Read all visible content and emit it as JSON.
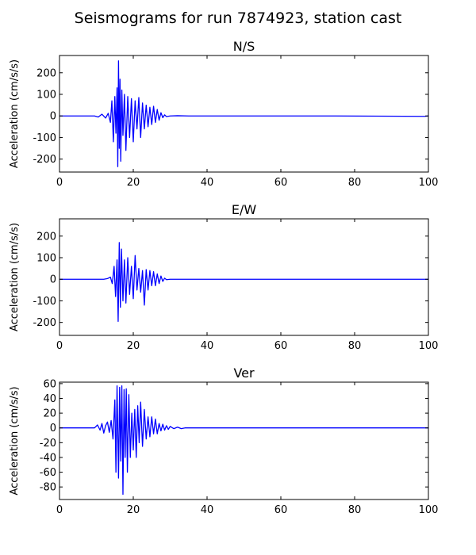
{
  "figure": {
    "title": "Seismograms for run 7874923, station cast"
  },
  "style": {
    "line_color": "#0000ff",
    "axes_color": "#000000",
    "background": "#ffffff"
  },
  "chart_data": [
    {
      "type": "line",
      "title": "N/S",
      "xlabel": "",
      "ylabel": "Acceleration (cm/s/s)",
      "xlim": [
        0,
        100
      ],
      "ylim": [
        -260,
        280
      ],
      "xticks": [
        0,
        20,
        40,
        60,
        80,
        100
      ],
      "yticks": [
        -200,
        -100,
        0,
        100,
        200
      ],
      "grid": false,
      "series": [
        {
          "x": [
            0,
            9.5,
            10.5,
            11.5,
            12.5,
            13.2,
            13.8,
            14.2,
            14.6,
            15.0,
            15.3,
            15.6,
            15.8,
            16.0,
            16.2,
            16.4,
            16.6,
            16.9,
            17.2,
            17.6,
            18.0,
            18.5,
            19.0,
            19.5,
            20.0,
            20.5,
            21.0,
            21.5,
            22.0,
            22.5,
            23.0,
            23.5,
            24.0,
            24.5,
            25.0,
            25.5,
            26.0,
            26.5,
            27.0,
            27.5,
            28.0,
            28.5,
            29.0,
            30.0,
            32.0,
            35.0,
            50.0,
            75.0,
            99.0,
            100.0
          ],
          "y": [
            0,
            0,
            -5,
            8,
            -10,
            12,
            -30,
            70,
            -120,
            90,
            -80,
            130,
            -235,
            255,
            -150,
            170,
            -210,
            120,
            -90,
            100,
            -160,
            90,
            -100,
            80,
            -120,
            70,
            -60,
            85,
            -100,
            60,
            -60,
            50,
            -50,
            40,
            -40,
            45,
            -30,
            30,
            -20,
            15,
            -8,
            5,
            -3,
            0,
            1,
            0,
            0,
            0,
            -2,
            0
          ]
        }
      ]
    },
    {
      "type": "line",
      "title": "E/W",
      "xlabel": "",
      "ylabel": "Acceleration (cm/s/s)",
      "xlim": [
        0,
        100
      ],
      "ylim": [
        -260,
        280
      ],
      "xticks": [
        0,
        20,
        40,
        60,
        80,
        100
      ],
      "yticks": [
        -200,
        -100,
        0,
        100,
        200
      ],
      "grid": false,
      "series": [
        {
          "x": [
            0,
            12.0,
            13.0,
            13.8,
            14.3,
            14.8,
            15.2,
            15.6,
            15.9,
            16.2,
            16.5,
            16.8,
            17.2,
            17.6,
            18.0,
            18.5,
            19.0,
            19.5,
            20.0,
            20.5,
            21.0,
            21.5,
            22.0,
            22.5,
            23.0,
            23.5,
            24.0,
            24.5,
            25.0,
            25.5,
            26.0,
            26.5,
            27.0,
            27.5,
            28.0,
            28.5,
            29.0,
            30.0,
            40.0,
            60.0,
            80.0,
            100.0
          ],
          "y": [
            0,
            0,
            3,
            10,
            -20,
            60,
            -80,
            90,
            -195,
            170,
            -130,
            140,
            -100,
            90,
            -110,
            100,
            -70,
            60,
            -90,
            110,
            -50,
            50,
            -60,
            40,
            -120,
            45,
            -50,
            40,
            -30,
            35,
            -30,
            25,
            -20,
            15,
            -10,
            5,
            -2,
            0,
            0,
            0,
            0,
            0
          ]
        }
      ]
    },
    {
      "type": "line",
      "title": "Ver",
      "xlabel": "",
      "ylabel": "Acceleration (cm/s/s)",
      "xlim": [
        0,
        100
      ],
      "ylim": [
        -97,
        62
      ],
      "xticks": [
        0,
        20,
        40,
        60,
        80,
        100
      ],
      "yticks": [
        -80,
        -60,
        -40,
        -20,
        0,
        20,
        40,
        60
      ],
      "grid": false,
      "series": [
        {
          "x": [
            0,
            9.5,
            10.3,
            11.0,
            11.5,
            12.0,
            12.5,
            13.0,
            13.5,
            14.0,
            14.5,
            15.0,
            15.3,
            15.6,
            16.0,
            16.3,
            16.6,
            16.9,
            17.2,
            17.5,
            17.8,
            18.1,
            18.4,
            18.8,
            19.2,
            19.6,
            20.0,
            20.4,
            20.8,
            21.2,
            21.6,
            22.0,
            22.5,
            23.0,
            23.5,
            24.0,
            24.5,
            25.0,
            25.5,
            26.0,
            26.5,
            27.0,
            27.5,
            28.0,
            28.5,
            29.0,
            29.5,
            30.0,
            31.0,
            32.0,
            33.0,
            34.0,
            36.0,
            40.0,
            60.0,
            80.0,
            100.0
          ],
          "y": [
            0,
            0,
            4,
            -3,
            6,
            -7,
            3,
            8,
            -6,
            10,
            -15,
            38,
            -60,
            57,
            -68,
            55,
            -45,
            57,
            -90,
            52,
            -40,
            53,
            -60,
            45,
            -40,
            20,
            -30,
            25,
            -40,
            30,
            -20,
            35,
            -25,
            25,
            -15,
            15,
            -12,
            15,
            -8,
            12,
            -8,
            6,
            -4,
            5,
            -3,
            3,
            -2,
            2,
            -1,
            1,
            -1,
            0,
            0,
            0,
            0,
            0,
            0
          ]
        }
      ]
    }
  ]
}
